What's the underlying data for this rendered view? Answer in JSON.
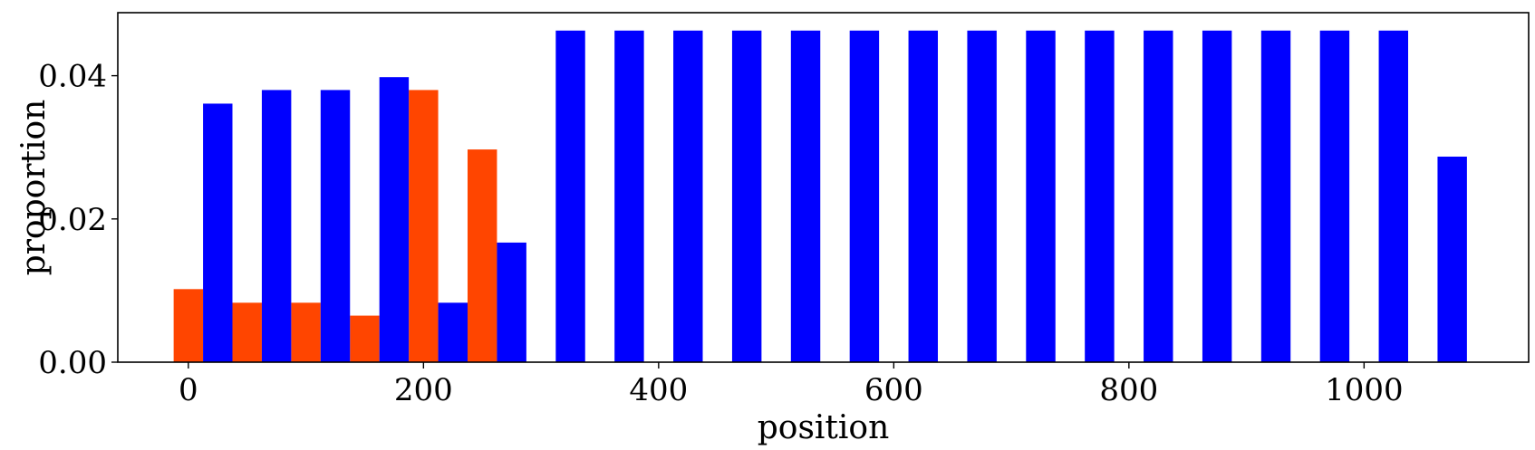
{
  "chart_data": {
    "type": "bar",
    "xlabel": "position",
    "ylabel": "proportion",
    "xlim": [
      -60,
      1140
    ],
    "ylim": [
      0,
      0.0488
    ],
    "bar_width": 25,
    "xticks": [
      0,
      200,
      400,
      600,
      800,
      1000
    ],
    "xtick_labels": [
      "0",
      "200",
      "400",
      "600",
      "800",
      "1000"
    ],
    "yticks": [
      0.0,
      0.02,
      0.04
    ],
    "ytick_labels": [
      "0.00",
      "0.02",
      "0.04"
    ],
    "grid": false,
    "legend": "none",
    "series": [
      {
        "color": "#ff4500",
        "points": [
          {
            "x": 0,
            "y": 0.0102
          },
          {
            "x": 50,
            "y": 0.0083
          },
          {
            "x": 100,
            "y": 0.0083
          },
          {
            "x": 150,
            "y": 0.0065
          },
          {
            "x": 200,
            "y": 0.038
          },
          {
            "x": 250,
            "y": 0.0297
          }
        ]
      },
      {
        "color": "#0000ff",
        "points": [
          {
            "x": 25,
            "y": 0.0361
          },
          {
            "x": 75,
            "y": 0.038
          },
          {
            "x": 125,
            "y": 0.038
          },
          {
            "x": 175,
            "y": 0.0398
          },
          {
            "x": 225,
            "y": 0.0083
          },
          {
            "x": 275,
            "y": 0.0167
          },
          {
            "x": 325,
            "y": 0.0463
          },
          {
            "x": 375,
            "y": 0.0463
          },
          {
            "x": 425,
            "y": 0.0463
          },
          {
            "x": 475,
            "y": 0.0463
          },
          {
            "x": 525,
            "y": 0.0463
          },
          {
            "x": 575,
            "y": 0.0463
          },
          {
            "x": 625,
            "y": 0.0463
          },
          {
            "x": 675,
            "y": 0.0463
          },
          {
            "x": 725,
            "y": 0.0463
          },
          {
            "x": 775,
            "y": 0.0463
          },
          {
            "x": 825,
            "y": 0.0463
          },
          {
            "x": 875,
            "y": 0.0463
          },
          {
            "x": 925,
            "y": 0.0463
          },
          {
            "x": 975,
            "y": 0.0463
          },
          {
            "x": 1025,
            "y": 0.0463
          },
          {
            "x": 1075,
            "y": 0.0287
          }
        ]
      }
    ]
  }
}
